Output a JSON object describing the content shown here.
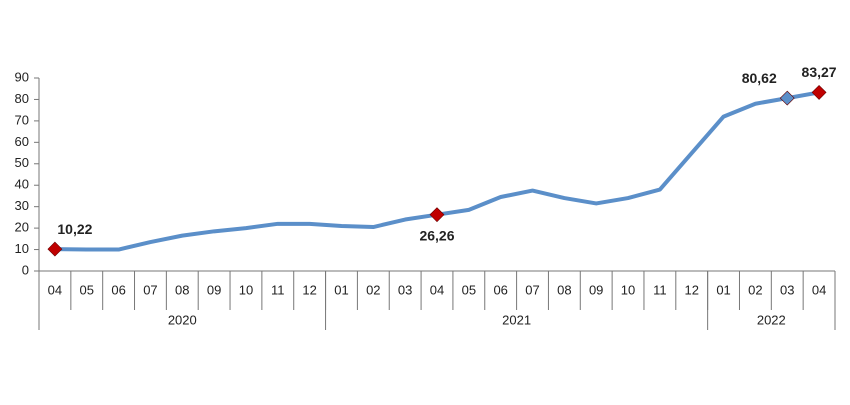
{
  "chart_data": {
    "type": "line",
    "categories": [
      "04",
      "05",
      "06",
      "07",
      "08",
      "09",
      "10",
      "11",
      "12",
      "01",
      "02",
      "03",
      "04",
      "05",
      "06",
      "07",
      "08",
      "09",
      "10",
      "11",
      "12",
      "01",
      "02",
      "03",
      "04"
    ],
    "groups": [
      {
        "label": "2020",
        "count": 9
      },
      {
        "label": "2021",
        "count": 12
      },
      {
        "label": "2022",
        "count": 4
      }
    ],
    "series": [
      {
        "color": "#5b8fc9",
        "values": [
          10.22,
          10.0,
          10.0,
          13.5,
          16.5,
          18.5,
          20.0,
          22.0,
          22.0,
          21.0,
          20.5,
          24.0,
          26.26,
          28.5,
          34.5,
          37.5,
          34.0,
          31.5,
          34.0,
          38.0,
          55.0,
          72.0,
          78.0,
          80.62,
          83.27
        ],
        "value_labels": [
          "10,22",
          null,
          null,
          null,
          null,
          null,
          null,
          null,
          null,
          null,
          null,
          null,
          "26,26",
          null,
          null,
          null,
          null,
          null,
          null,
          null,
          null,
          null,
          null,
          "80,62",
          "83,27"
        ],
        "markers": [
          "#c00000",
          null,
          null,
          null,
          null,
          null,
          null,
          null,
          null,
          null,
          null,
          null,
          "#c00000",
          null,
          null,
          null,
          null,
          null,
          null,
          null,
          null,
          null,
          null,
          "#5b8fc9",
          "#c00000"
        ]
      }
    ],
    "ylim": [
      0,
      90
    ],
    "yticks": [
      0,
      10,
      20,
      30,
      40,
      50,
      60,
      70,
      80,
      90
    ],
    "grid": false
  }
}
